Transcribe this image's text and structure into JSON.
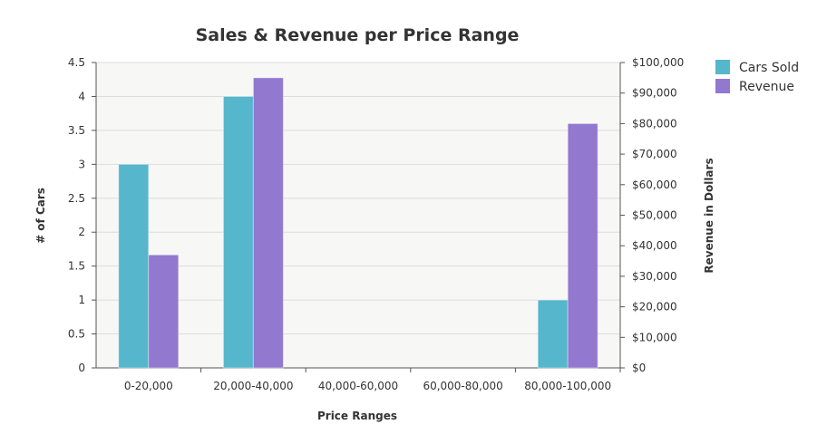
{
  "chart_data": {
    "type": "bar",
    "title": "Sales & Revenue per Price Range",
    "xlabel": "Price Ranges",
    "ylabel": "# of Cars",
    "y2label": "Revenue in Dollars",
    "categories": [
      "0-20,000",
      "20,000-40,000",
      "40,000-60,000",
      "60,000-80,000",
      "80,000-100,000"
    ],
    "ylim": [
      0,
      4.5
    ],
    "y2lim": [
      0,
      100000
    ],
    "yticks": [
      "0",
      "0.5",
      "1",
      "1.5",
      "2",
      "2.5",
      "3",
      "3.5",
      "4",
      "4.5"
    ],
    "y2ticks": [
      "$0",
      "$10,000",
      "$20,000",
      "$30,000",
      "$40,000",
      "$50,000",
      "$60,000",
      "$70,000",
      "$80,000",
      "$90,000",
      "$100,000"
    ],
    "grid": true,
    "legend_position": "top-right",
    "plot_background": "#f7f8f5",
    "series": [
      {
        "name": "Cars Sold",
        "axis": "left",
        "color": "#55b6cc",
        "values": [
          3,
          4,
          0,
          0,
          1
        ]
      },
      {
        "name": "Revenue",
        "axis": "right",
        "color": "#9278cf",
        "values": [
          37000,
          95000,
          0,
          0,
          80000
        ]
      }
    ]
  }
}
